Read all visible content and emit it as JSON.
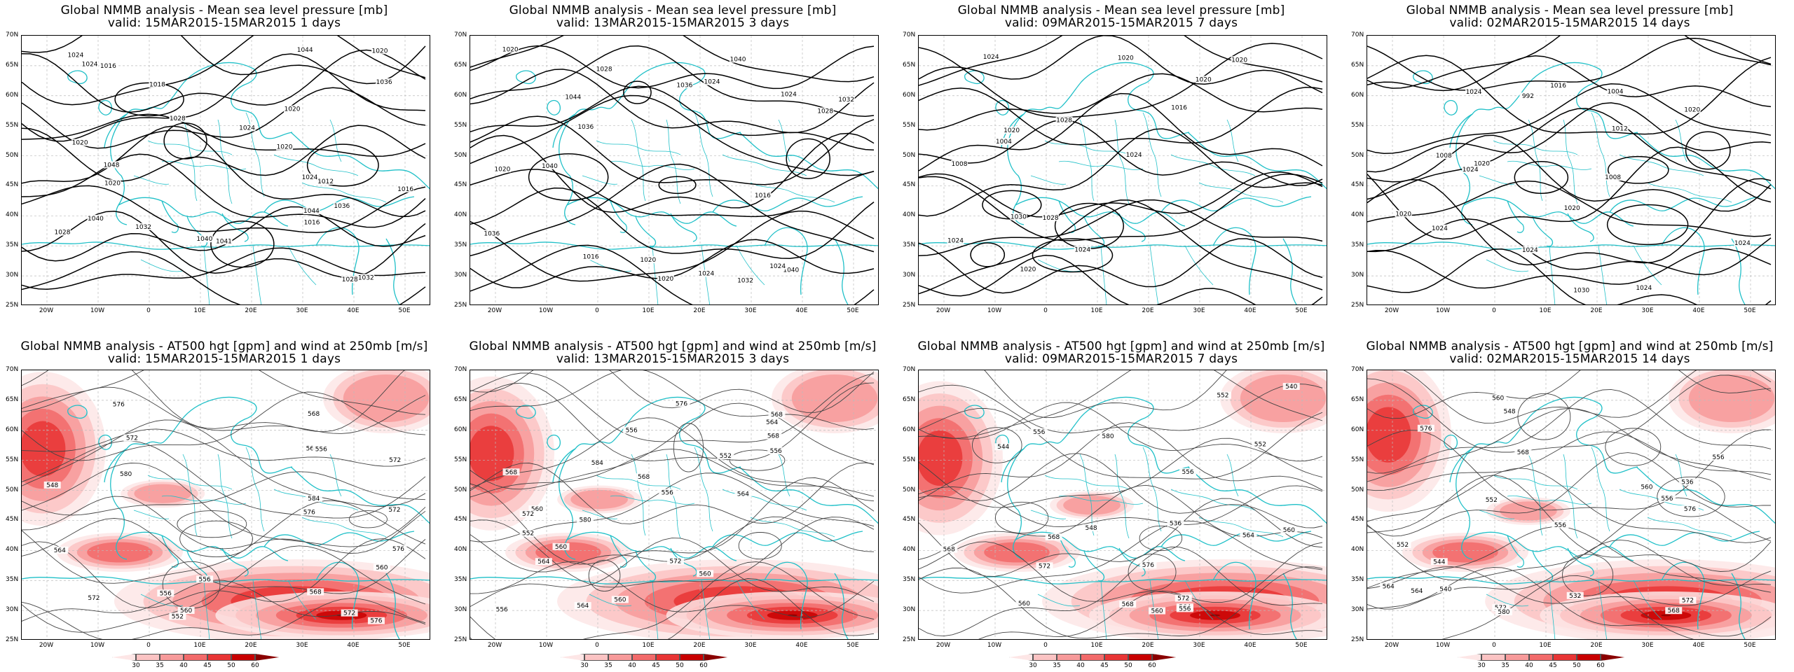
{
  "panels": [
    {
      "id": "p1",
      "title": "Global NMMB analysis - Mean sea level pressure [mb]",
      "subtitle": "valid: 15MAR2015-15MAR2015   1 days",
      "kind": "mslp"
    },
    {
      "id": "p2",
      "title": "Global NMMB analysis - Mean sea level pressure [mb]",
      "subtitle": "valid: 13MAR2015-15MAR2015   3 days",
      "kind": "mslp"
    },
    {
      "id": "p3",
      "title": "Global NMMB analysis - Mean sea level pressure [mb]",
      "subtitle": "valid: 09MAR2015-15MAR2015   7 days",
      "kind": "mslp"
    },
    {
      "id": "p4",
      "title": "Global NMMB analysis - Mean sea level pressure [mb]",
      "subtitle": "valid: 02MAR2015-15MAR2015   14 days",
      "kind": "mslp"
    },
    {
      "id": "p5",
      "title": "Global NMMB analysis - AT500 hgt [gpm] and wind at 250mb [m/s]",
      "subtitle": "valid: 15MAR2015-15MAR2015   1 days",
      "kind": "hgt"
    },
    {
      "id": "p6",
      "title": "Global NMMB analysis - AT500 hgt [gpm] and wind at 250mb [m/s]",
      "subtitle": "valid: 13MAR2015-15MAR2015   3 days",
      "kind": "hgt"
    },
    {
      "id": "p7",
      "title": "Global NMMB analysis - AT500 hgt [gpm] and wind at 250mb [m/s]",
      "subtitle": "valid: 09MAR2015-15MAR2015   7 days",
      "kind": "hgt"
    },
    {
      "id": "p8",
      "title": "Global NMMB analysis - AT500 hgt [gpm] and wind at 250mb [m/s]",
      "subtitle": "valid: 02MAR2015-15MAR2015   14 days",
      "kind": "hgt"
    }
  ],
  "lat_labels": [
    "70N",
    "65N",
    "60N",
    "55N",
    "50N",
    "45N",
    "40N",
    "35N",
    "30N",
    "25N"
  ],
  "lon_labels": [
    "20W",
    "10W",
    "0",
    "10E",
    "20E",
    "30E",
    "40E",
    "50E"
  ],
  "colorbar": {
    "labels": [
      "30",
      "35",
      "40",
      "45",
      "50",
      "60"
    ],
    "colors": [
      "#fde6e6",
      "#fbc3c3",
      "#f79a9a",
      "#f26a6a",
      "#e83535",
      "#c80000",
      "#8a0000"
    ]
  },
  "contour_labels": {
    "p1": [
      "1044",
      "1048",
      "1041",
      "1040",
      "1036",
      "1044",
      "1032",
      "1040",
      "1036",
      "1032",
      "1028",
      "1024",
      "1020",
      "1020",
      "1016",
      "1028",
      "1020",
      "1024",
      "1016",
      "1028",
      "1020",
      "1024",
      "1020",
      "1016",
      "1012",
      "1018",
      "1024"
    ],
    "p2": [
      "1032",
      "1036",
      "1040",
      "1044",
      "1040",
      "1036",
      "1032",
      "1028",
      "1040",
      "1036",
      "1024",
      "1024",
      "1020",
      "1028",
      "1024",
      "1024",
      "1020",
      "1020",
      "1016",
      "1020",
      "1016"
    ],
    "p3": [
      "1016",
      "1020",
      "1024",
      "1028",
      "1024",
      "1028",
      "1008",
      "1004",
      "1024",
      "1020",
      "1020",
      "1024",
      "1020",
      "1020",
      "1030"
    ],
    "p4": [
      "1008",
      "1012",
      "1016",
      "992",
      "1004",
      "1008",
      "1024",
      "1020",
      "1024",
      "1024",
      "1024",
      "1020",
      "1024",
      "1030",
      "1020",
      "1024",
      "1020"
    ],
    "p5": [
      "576",
      "572",
      "576",
      "572",
      "572",
      "568",
      "556",
      "556",
      "572",
      "552",
      "548",
      "556",
      "560",
      "564",
      "560",
      "568",
      "572",
      "576",
      "568",
      "576",
      "580",
      "584"
    ],
    "p6": [
      "556",
      "552",
      "560",
      "564",
      "568",
      "572",
      "564",
      "568",
      "560",
      "556",
      "560",
      "564",
      "556",
      "552",
      "556",
      "560",
      "564",
      "568",
      "572",
      "576",
      "580",
      "584",
      "568"
    ],
    "p7": [
      "536",
      "540",
      "544",
      "548",
      "552",
      "556",
      "560",
      "564",
      "568",
      "560",
      "556",
      "552",
      "556",
      "560",
      "564",
      "568",
      "572",
      "576",
      "580",
      "568",
      "572"
    ],
    "p8": [
      "532",
      "536",
      "540",
      "544",
      "548",
      "552",
      "556",
      "552",
      "556",
      "560",
      "564",
      "568",
      "572",
      "576",
      "560",
      "556",
      "564",
      "568",
      "572",
      "576",
      "580"
    ]
  }
}
